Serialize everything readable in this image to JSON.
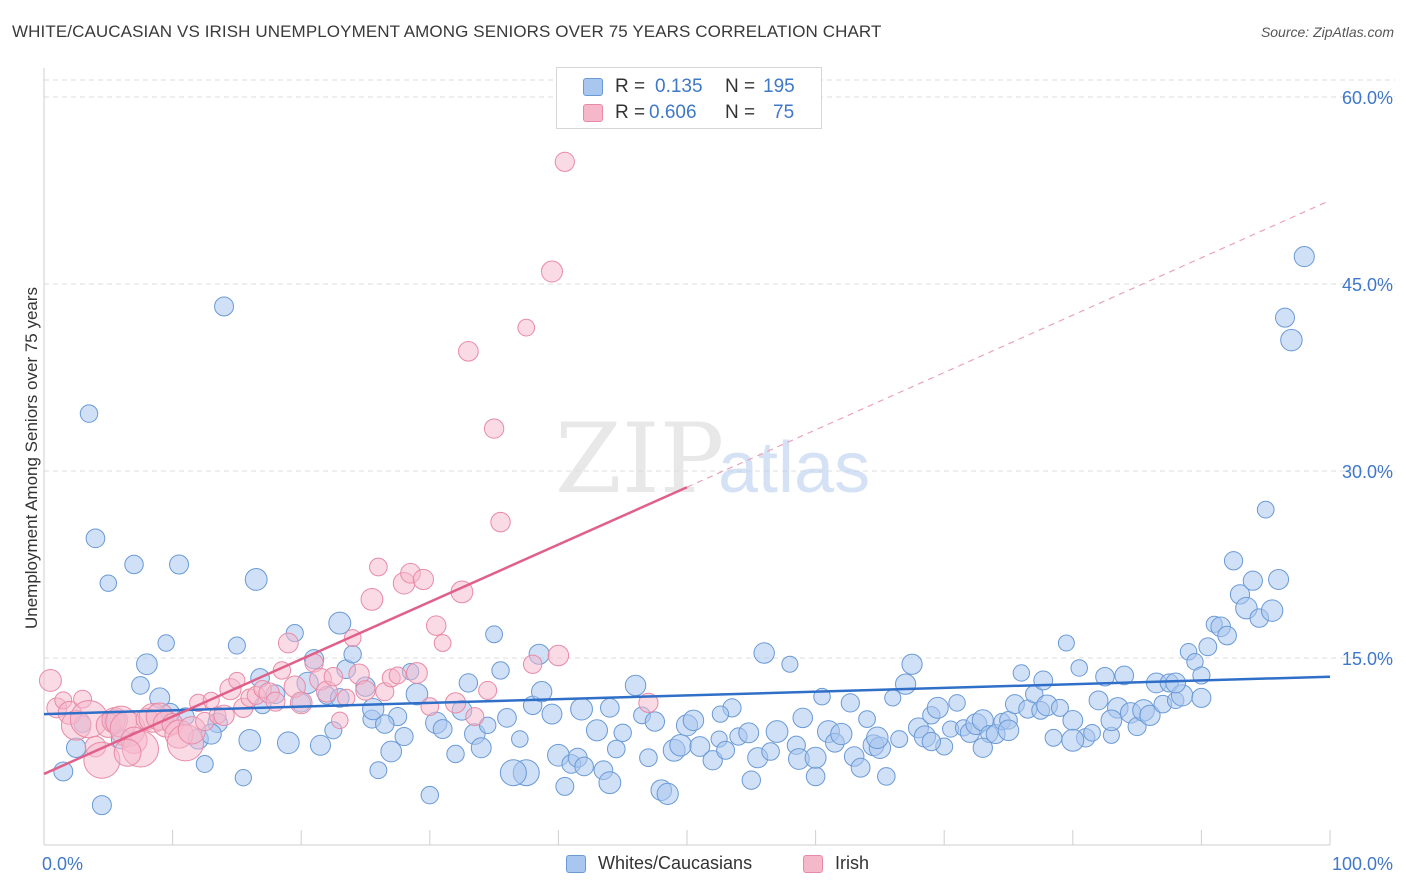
{
  "title": "WHITE/CAUCASIAN VS IRISH UNEMPLOYMENT AMONG SENIORS OVER 75 YEARS CORRELATION CHART",
  "source": "Source: ZipAtlas.com",
  "watermark": {
    "zip": "ZIP",
    "atlas": "atlas"
  },
  "legend": {
    "r_label": "R =",
    "n_label": "N =",
    "series1": {
      "r": "0.135",
      "n": "195"
    },
    "series2": {
      "r": "0.606",
      "n": "75"
    }
  },
  "colors": {
    "blue_fill": "#a9c6ee",
    "blue_stroke": "#6a9ad6",
    "blue_line": "#2f6fc8",
    "pink_fill": "#f5b8cb",
    "pink_stroke": "#e88aa6",
    "pink_line": "#e0608a",
    "tick_text": "#3f78c8",
    "grid": "#dedede"
  },
  "chart_data": {
    "type": "scatter",
    "title": "WHITE/CAUCASIAN VS IRISH UNEMPLOYMENT AMONG SENIORS OVER 75 YEARS CORRELATION CHART",
    "xlabel": "",
    "ylabel": "Unemployment Among Seniors over 75 years",
    "xlim": [
      0,
      100
    ],
    "ylim": [
      0,
      60
    ],
    "x_tick_labels": [
      "0.0%",
      "100.0%"
    ],
    "y_ticks": [
      15,
      30,
      45,
      60
    ],
    "y_tick_labels": [
      "15.0%",
      "30.0%",
      "45.0%",
      "60.0%"
    ],
    "grid": true,
    "legend_position": "top-center",
    "series": [
      {
        "name": "Whites/Caucasians",
        "r": 0.135,
        "n": 195,
        "trend": {
          "x0": 0,
          "y0": 10.5,
          "x1": 100,
          "y1": 13.5
        },
        "points": [
          [
            1.5,
            5.9
          ],
          [
            2.5,
            7.8
          ],
          [
            3.0,
            9.7
          ],
          [
            3.5,
            34.6
          ],
          [
            4.0,
            24.6
          ],
          [
            4.5,
            3.2
          ],
          [
            5.0,
            21.0
          ],
          [
            5.5,
            10.0
          ],
          [
            6.0,
            8.5
          ],
          [
            7.0,
            22.5
          ],
          [
            7.5,
            12.8
          ],
          [
            8.0,
            14.5
          ],
          [
            9.0,
            11.8
          ],
          [
            9.5,
            16.2
          ],
          [
            10.5,
            22.5
          ],
          [
            11.0,
            10.3
          ],
          [
            12.0,
            8.5
          ],
          [
            12.5,
            6.5
          ],
          [
            13.5,
            9.8
          ],
          [
            14.0,
            43.2
          ],
          [
            15.0,
            16.0
          ],
          [
            15.5,
            5.4
          ],
          [
            16.0,
            8.4
          ],
          [
            16.5,
            21.3
          ],
          [
            17.0,
            11.2
          ],
          [
            18.0,
            12.1
          ],
          [
            19.0,
            8.2
          ],
          [
            19.5,
            17.0
          ],
          [
            20.0,
            11.4
          ],
          [
            21.0,
            14.9
          ],
          [
            21.5,
            8.0
          ],
          [
            22.0,
            12.0
          ],
          [
            22.5,
            9.2
          ],
          [
            23.0,
            17.8
          ],
          [
            23.5,
            14.1
          ],
          [
            24.0,
            15.3
          ],
          [
            25.0,
            12.7
          ],
          [
            25.5,
            10.1
          ],
          [
            26.0,
            6.0
          ],
          [
            27.0,
            7.5
          ],
          [
            27.5,
            10.3
          ],
          [
            28.0,
            8.7
          ],
          [
            28.5,
            13.9
          ],
          [
            29.0,
            12.1
          ],
          [
            30.0,
            4.0
          ],
          [
            30.5,
            9.8
          ],
          [
            31.0,
            9.3
          ],
          [
            32.0,
            7.3
          ],
          [
            32.5,
            10.8
          ],
          [
            33.0,
            13.0
          ],
          [
            33.5,
            8.9
          ],
          [
            34.0,
            7.8
          ],
          [
            35.0,
            16.9
          ],
          [
            35.5,
            14.0
          ],
          [
            36.0,
            10.2
          ],
          [
            37.0,
            8.5
          ],
          [
            37.5,
            5.8
          ],
          [
            38.0,
            11.2
          ],
          [
            38.5,
            15.3
          ],
          [
            39.5,
            10.5
          ],
          [
            40.0,
            7.2
          ],
          [
            40.5,
            4.7
          ],
          [
            41.0,
            6.5
          ],
          [
            41.5,
            7.0
          ],
          [
            42.0,
            6.3
          ],
          [
            43.0,
            9.2
          ],
          [
            43.5,
            6.0
          ],
          [
            44.0,
            11.0
          ],
          [
            44.5,
            7.7
          ],
          [
            45.0,
            9.0
          ],
          [
            46.0,
            12.8
          ],
          [
            46.5,
            10.4
          ],
          [
            47.0,
            7.0
          ],
          [
            48.0,
            4.4
          ],
          [
            48.5,
            4.1
          ],
          [
            49.0,
            7.6
          ],
          [
            49.5,
            8.0
          ],
          [
            50.0,
            9.6
          ],
          [
            50.5,
            10.0
          ],
          [
            51.0,
            7.9
          ],
          [
            52.0,
            6.8
          ],
          [
            52.5,
            8.5
          ],
          [
            53.0,
            7.6
          ],
          [
            53.5,
            11.0
          ],
          [
            54.0,
            8.7
          ],
          [
            55.0,
            5.2
          ],
          [
            55.5,
            7.0
          ],
          [
            56.0,
            15.4
          ],
          [
            56.5,
            7.5
          ],
          [
            57.0,
            9.1
          ],
          [
            58.0,
            14.5
          ],
          [
            58.5,
            8.0
          ],
          [
            59.0,
            10.2
          ],
          [
            60.0,
            5.5
          ],
          [
            60.5,
            11.9
          ],
          [
            61.0,
            9.1
          ],
          [
            61.5,
            8.2
          ],
          [
            62.0,
            8.9
          ],
          [
            63.0,
            7.1
          ],
          [
            63.5,
            6.2
          ],
          [
            64.0,
            10.1
          ],
          [
            64.5,
            8.0
          ],
          [
            65.0,
            7.8
          ],
          [
            65.5,
            5.5
          ],
          [
            66.0,
            11.8
          ],
          [
            66.5,
            8.5
          ],
          [
            67.0,
            12.9
          ],
          [
            67.5,
            14.5
          ],
          [
            68.0,
            9.4
          ],
          [
            68.5,
            8.7
          ],
          [
            69.0,
            10.4
          ],
          [
            69.5,
            11.0
          ],
          [
            70.0,
            7.9
          ],
          [
            70.5,
            9.3
          ],
          [
            71.0,
            11.4
          ],
          [
            71.5,
            9.4
          ],
          [
            72.0,
            9.0
          ],
          [
            72.5,
            9.7
          ],
          [
            73.0,
            10.0
          ],
          [
            73.5,
            8.9
          ],
          [
            74.0,
            8.9
          ],
          [
            74.5,
            9.9
          ],
          [
            75.0,
            10.0
          ],
          [
            75.5,
            11.3
          ],
          [
            76.0,
            13.8
          ],
          [
            76.5,
            10.9
          ],
          [
            77.0,
            12.1
          ],
          [
            77.5,
            10.8
          ],
          [
            78.0,
            11.2
          ],
          [
            78.5,
            8.6
          ],
          [
            79.0,
            11.0
          ],
          [
            79.5,
            16.2
          ],
          [
            80.0,
            10.0
          ],
          [
            80.5,
            14.2
          ],
          [
            81.0,
            8.6
          ],
          [
            81.5,
            9.0
          ],
          [
            82.0,
            11.6
          ],
          [
            82.5,
            13.5
          ],
          [
            83.0,
            8.8
          ],
          [
            83.5,
            11.0
          ],
          [
            84.0,
            13.6
          ],
          [
            84.5,
            10.6
          ],
          [
            85.0,
            9.5
          ],
          [
            85.5,
            10.8
          ],
          [
            86.0,
            10.4
          ],
          [
            86.5,
            13.0
          ],
          [
            87.0,
            11.3
          ],
          [
            87.5,
            13.0
          ],
          [
            88.0,
            11.6
          ],
          [
            88.5,
            12.0
          ],
          [
            89.0,
            15.5
          ],
          [
            89.5,
            14.7
          ],
          [
            90.0,
            13.6
          ],
          [
            90.5,
            15.9
          ],
          [
            91.0,
            17.7
          ],
          [
            91.5,
            17.5
          ],
          [
            92.0,
            16.8
          ],
          [
            92.5,
            22.8
          ],
          [
            93.0,
            20.1
          ],
          [
            93.5,
            19.0
          ],
          [
            94.0,
            21.2
          ],
          [
            94.5,
            18.2
          ],
          [
            95.0,
            26.9
          ],
          [
            95.5,
            18.8
          ],
          [
            96.0,
            21.3
          ],
          [
            96.5,
            42.3
          ],
          [
            97.0,
            40.5
          ],
          [
            98.0,
            47.2
          ],
          [
            36.5,
            5.8
          ],
          [
            44.0,
            5.0
          ],
          [
            20.5,
            13.0
          ],
          [
            26.5,
            9.7
          ],
          [
            9.8,
            10.6
          ],
          [
            13.0,
            8.9
          ],
          [
            58.7,
            6.9
          ],
          [
            64.8,
            8.6
          ],
          [
            73.0,
            7.8
          ],
          [
            80.0,
            8.4
          ],
          [
            88.0,
            13.0
          ],
          [
            60.0,
            7.0
          ],
          [
            23.0,
            11.8
          ],
          [
            34.5,
            9.6
          ],
          [
            41.8,
            10.9
          ],
          [
            47.5,
            9.9
          ],
          [
            54.8,
            9.0
          ],
          [
            69.0,
            8.3
          ],
          [
            75.0,
            9.2
          ],
          [
            83.0,
            10.0
          ],
          [
            90.0,
            11.8
          ],
          [
            16.8,
            13.4
          ],
          [
            25.6,
            10.9
          ],
          [
            38.7,
            12.3
          ],
          [
            52.6,
            10.5
          ],
          [
            62.7,
            11.4
          ],
          [
            77.7,
            13.2
          ]
        ]
      },
      {
        "name": "Irish",
        "r": 0.606,
        "n": 75,
        "trend": {
          "x0": 0,
          "y0": 5.7,
          "x1": 50,
          "y1": 28.7,
          "dashed_to_x": 100,
          "dashed_to_y": 51.7
        },
        "points": [
          [
            0.5,
            13.2
          ],
          [
            1.0,
            11.0
          ],
          [
            1.5,
            11.6
          ],
          [
            2.0,
            10.6
          ],
          [
            2.5,
            9.6
          ],
          [
            3.0,
            11.7
          ],
          [
            3.5,
            10.1
          ],
          [
            4.0,
            7.9
          ],
          [
            4.5,
            6.8
          ],
          [
            5.0,
            9.6
          ],
          [
            5.5,
            10.0
          ],
          [
            6.0,
            9.9
          ],
          [
            6.5,
            9.3
          ],
          [
            7.0,
            8.4
          ],
          [
            7.5,
            7.7
          ],
          [
            8.0,
            10.1
          ],
          [
            8.5,
            10.2
          ],
          [
            9.0,
            10.3
          ],
          [
            9.5,
            9.7
          ],
          [
            10.0,
            9.7
          ],
          [
            10.5,
            8.9
          ],
          [
            11.0,
            8.2
          ],
          [
            11.5,
            9.2
          ],
          [
            12.0,
            11.4
          ],
          [
            12.5,
            9.9
          ],
          [
            13.0,
            11.6
          ],
          [
            13.5,
            10.4
          ],
          [
            14.0,
            10.4
          ],
          [
            14.5,
            12.5
          ],
          [
            15.0,
            13.2
          ],
          [
            15.5,
            11.0
          ],
          [
            16.0,
            11.8
          ],
          [
            16.5,
            12.0
          ],
          [
            17.0,
            12.5
          ],
          [
            17.5,
            12.2
          ],
          [
            18.0,
            11.5
          ],
          [
            18.5,
            14.0
          ],
          [
            19.0,
            16.2
          ],
          [
            19.5,
            12.7
          ],
          [
            20.0,
            11.4
          ],
          [
            21.0,
            14.6
          ],
          [
            21.5,
            13.3
          ],
          [
            22.0,
            12.3
          ],
          [
            22.5,
            13.5
          ],
          [
            23.0,
            10.0
          ],
          [
            23.5,
            11.8
          ],
          [
            24.0,
            16.6
          ],
          [
            24.5,
            13.7
          ],
          [
            25.0,
            12.4
          ],
          [
            25.5,
            19.7
          ],
          [
            26.0,
            22.3
          ],
          [
            26.5,
            12.3
          ],
          [
            27.0,
            13.4
          ],
          [
            27.5,
            13.6
          ],
          [
            28.0,
            21.0
          ],
          [
            28.5,
            21.8
          ],
          [
            29.0,
            13.8
          ],
          [
            29.5,
            21.3
          ],
          [
            30.0,
            11.1
          ],
          [
            30.5,
            17.6
          ],
          [
            31.0,
            16.2
          ],
          [
            32.0,
            11.4
          ],
          [
            32.5,
            20.3
          ],
          [
            33.0,
            39.6
          ],
          [
            33.5,
            10.3
          ],
          [
            34.5,
            12.4
          ],
          [
            35.0,
            33.4
          ],
          [
            35.5,
            25.9
          ],
          [
            37.5,
            41.5
          ],
          [
            38.0,
            14.5
          ],
          [
            39.5,
            46.0
          ],
          [
            40.0,
            15.2
          ],
          [
            40.5,
            54.8
          ],
          [
            47.0,
            11.4
          ],
          [
            6.5,
            7.4
          ]
        ]
      }
    ]
  }
}
